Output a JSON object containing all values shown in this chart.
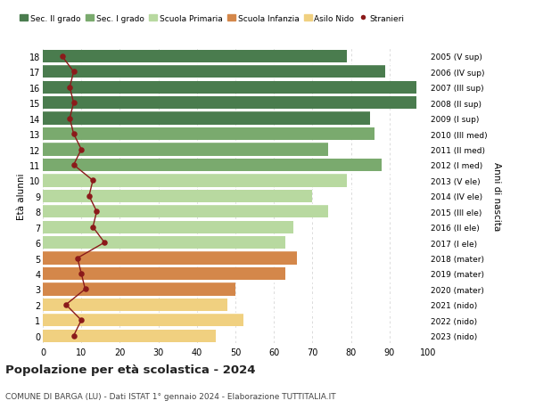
{
  "ages": [
    18,
    17,
    16,
    15,
    14,
    13,
    12,
    11,
    10,
    9,
    8,
    7,
    6,
    5,
    4,
    3,
    2,
    1,
    0
  ],
  "years": [
    "2005 (V sup)",
    "2006 (IV sup)",
    "2007 (III sup)",
    "2008 (II sup)",
    "2009 (I sup)",
    "2010 (III med)",
    "2011 (II med)",
    "2012 (I med)",
    "2013 (V ele)",
    "2014 (IV ele)",
    "2015 (III ele)",
    "2016 (II ele)",
    "2017 (I ele)",
    "2018 (mater)",
    "2019 (mater)",
    "2020 (mater)",
    "2021 (nido)",
    "2022 (nido)",
    "2023 (nido)"
  ],
  "bar_values": [
    79,
    89,
    97,
    97,
    85,
    86,
    74,
    88,
    79,
    70,
    74,
    65,
    63,
    66,
    63,
    50,
    48,
    52,
    45
  ],
  "bar_colors": [
    "#4a7c4e",
    "#4a7c4e",
    "#4a7c4e",
    "#4a7c4e",
    "#4a7c4e",
    "#7aaa6e",
    "#7aaa6e",
    "#7aaa6e",
    "#b8d9a0",
    "#b8d9a0",
    "#b8d9a0",
    "#b8d9a0",
    "#b8d9a0",
    "#d4874a",
    "#d4874a",
    "#d4874a",
    "#f0d080",
    "#f0d080",
    "#f0d080"
  ],
  "stranieri_values": [
    5,
    8,
    7,
    8,
    7,
    8,
    10,
    8,
    13,
    12,
    14,
    13,
    16,
    9,
    10,
    11,
    6,
    10,
    8
  ],
  "stranieri_color": "#8b1a1a",
  "legend_labels": [
    "Sec. II grado",
    "Sec. I grado",
    "Scuola Primaria",
    "Scuola Infanzia",
    "Asilo Nido",
    "Stranieri"
  ],
  "legend_colors": [
    "#4a7c4e",
    "#7aaa6e",
    "#b8d9a0",
    "#d4874a",
    "#f0d080",
    "#8b1a1a"
  ],
  "title": "Popolazione per età scolastica - 2024",
  "subtitle": "COMUNE DI BARGA (LU) - Dati ISTAT 1° gennaio 2024 - Elaborazione TUTTITALIA.IT",
  "ylabel": "Età alunni",
  "ylabel2": "Anni di nascita",
  "xlim": [
    0,
    100
  ],
  "background_color": "#ffffff",
  "grid_color": "#cccccc"
}
